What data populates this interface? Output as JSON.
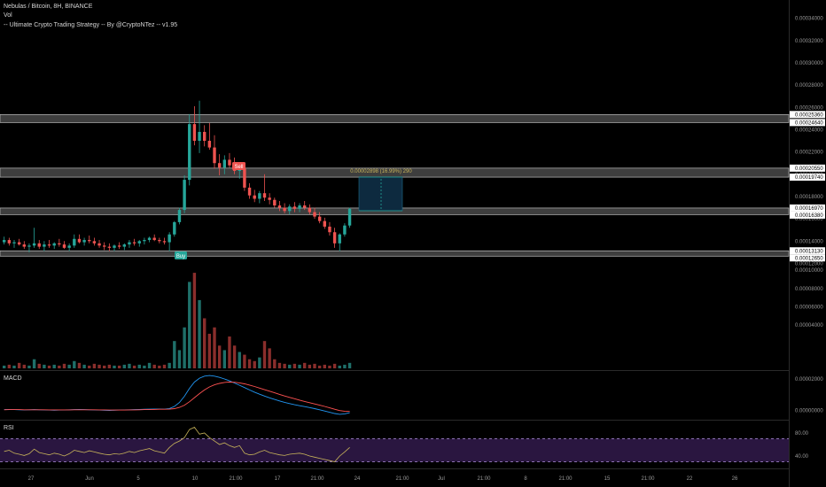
{
  "header": {
    "symbol_line": "Nebulas / Bitcoin, 8H, BINANCE",
    "volume_line": "Vol",
    "strategy_line": "-- Ultimate Crypto Trading Strategy -- By @CryptoNTez -- v1.95"
  },
  "panes": {
    "macd_label": "MACD",
    "rsi_label": "RSI"
  },
  "price_axis": {
    "ticks": [
      "0.00034000",
      "0.00032000",
      "0.00030000",
      "0.00028000",
      "0.00026000",
      "0.00024000",
      "0.00022000",
      "0.00020000",
      "0.00018000",
      "0.00016000",
      "0.00014000",
      "0.00012000"
    ],
    "highlight_labels": [
      "0.00025360",
      "0.00024640",
      "0.00020550",
      "0.00019740",
      "0.00016970",
      "0.00016380",
      "0.00013130",
      "0.00012650"
    ]
  },
  "volume_axis": {
    "ticks": [
      "0.00010000",
      "0.00008000",
      "0.00006000",
      "0.00004000"
    ]
  },
  "macd_axis": {
    "ticks": [
      "0.00002000",
      "0.00000000"
    ]
  },
  "rsi_axis": {
    "ticks": [
      "80.00",
      "40.00"
    ]
  },
  "time_axis": {
    "labels": [
      "27",
      "Jun",
      "5",
      "10",
      "21:00",
      "17",
      "21:00",
      "24",
      "21:00",
      "Jul",
      "21:00",
      "8",
      "21:00",
      "15",
      "21:00",
      "22",
      "26"
    ]
  },
  "signals": {
    "buy_label": "Buy",
    "sell_label": "Sell"
  },
  "measure": {
    "text": "0.00002898 (16.99%) 290"
  },
  "colors": {
    "up": "#26a69a",
    "down": "#ef5350",
    "macd": "#2196f3",
    "signal": "#ff5252",
    "rsi": "#c8b45a",
    "zone": "#8c8c8c"
  },
  "chart_data": [
    {
      "type": "candlestick",
      "title": "Nebulas / Bitcoin, 8H, BINANCE",
      "ylim": [
        0.000118,
        0.00035
      ],
      "zones": [
        [
          0.0002464,
          0.0002536
        ],
        [
          0.0001974,
          0.0002055
        ],
        [
          0.0001638,
          0.0001697
        ],
        [
          0.0001265,
          0.0001313
        ]
      ],
      "values": [
        [
          0.000139,
          0.000144,
          0.000137,
          0.000141
        ],
        [
          0.000141,
          0.000143,
          0.000136,
          0.000138
        ],
        [
          0.000138,
          0.000141,
          0.000134,
          0.000139
        ],
        [
          0.000139,
          0.000142,
          0.000136,
          0.000137
        ],
        [
          0.000137,
          0.00014,
          0.000133,
          0.000135
        ],
        [
          0.000135,
          0.000138,
          0.00013,
          0.000136
        ],
        [
          0.000136,
          0.000152,
          0.000134,
          0.000138
        ],
        [
          0.000138,
          0.000141,
          0.000133,
          0.000135
        ],
        [
          0.000135,
          0.00014,
          0.000131,
          0.000137
        ],
        [
          0.000137,
          0.000141,
          0.000134,
          0.000136
        ],
        [
          0.000136,
          0.000139,
          0.000133,
          0.000138
        ],
        [
          0.000138,
          0.000142,
          0.000135,
          0.000137
        ],
        [
          0.000137,
          0.00014,
          0.000133,
          0.000134
        ],
        [
          0.000134,
          0.000138,
          0.000131,
          0.000136
        ],
        [
          0.000136,
          0.000146,
          0.000134,
          0.000142
        ],
        [
          0.000142,
          0.000146,
          0.000138,
          0.000139
        ],
        [
          0.000139,
          0.000143,
          0.000136,
          0.000141
        ],
        [
          0.000141,
          0.000145,
          0.000138,
          0.00014
        ],
        [
          0.00014,
          0.000143,
          0.000136,
          0.000138
        ],
        [
          0.000138,
          0.000141,
          0.000134,
          0.000136
        ],
        [
          0.000136,
          0.000139,
          0.000132,
          0.000135
        ],
        [
          0.000135,
          0.000138,
          0.000131,
          0.000134
        ],
        [
          0.000134,
          0.000137,
          0.000131,
          0.000136
        ],
        [
          0.000136,
          0.000139,
          0.000133,
          0.000135
        ],
        [
          0.000135,
          0.000138,
          0.000132,
          0.000137
        ],
        [
          0.000137,
          0.000141,
          0.000134,
          0.000139
        ],
        [
          0.000139,
          0.000142,
          0.000136,
          0.000138
        ],
        [
          0.000138,
          0.000141,
          0.000135,
          0.00014
        ],
        [
          0.00014,
          0.000143,
          0.000137,
          0.000141
        ],
        [
          0.000141,
          0.000144,
          0.000139,
          0.000143
        ],
        [
          0.000143,
          0.000146,
          0.00014,
          0.000141
        ],
        [
          0.000141,
          0.000143,
          0.000138,
          0.00014
        ],
        [
          0.00014,
          0.000143,
          0.000137,
          0.000139
        ],
        [
          0.000139,
          0.000148,
          0.000131,
          0.000146
        ],
        [
          0.000146,
          0.000158,
          0.000144,
          0.000157
        ],
        [
          0.000157,
          0.00017,
          0.000155,
          0.000168
        ],
        [
          0.000168,
          0.000199,
          0.000165,
          0.000195
        ],
        [
          0.000195,
          0.000254,
          0.00019,
          0.000245
        ],
        [
          0.000245,
          0.000261,
          0.000226,
          0.00023
        ],
        [
          0.00023,
          0.000266,
          0.000219,
          0.000238
        ],
        [
          0.000238,
          0.000244,
          0.000225,
          0.00023
        ],
        [
          0.00023,
          0.000246,
          0.000222,
          0.000224
        ],
        [
          0.000224,
          0.000235,
          0.000205,
          0.00021
        ],
        [
          0.00021,
          0.000218,
          0.000199,
          0.000206
        ],
        [
          0.000206,
          0.000217,
          0.0002,
          0.000213
        ],
        [
          0.000213,
          0.000219,
          0.000206,
          0.000208
        ],
        [
          0.000208,
          0.000215,
          0.0002,
          0.000203
        ],
        [
          0.000203,
          0.00021,
          0.000196,
          0.000205
        ],
        [
          0.000205,
          0.000208,
          0.000185,
          0.000188
        ],
        [
          0.000188,
          0.000192,
          0.000178,
          0.000181
        ],
        [
          0.000181,
          0.000186,
          0.000175,
          0.000178
        ],
        [
          0.000178,
          0.000185,
          0.000174,
          0.000183
        ],
        [
          0.000183,
          0.0002,
          0.000176,
          0.000179
        ],
        [
          0.000179,
          0.000183,
          0.000173,
          0.000177
        ],
        [
          0.000177,
          0.000179,
          0.00017,
          0.000172
        ],
        [
          0.000172,
          0.000176,
          0.000167,
          0.00017
        ],
        [
          0.00017,
          0.000174,
          0.000165,
          0.000167
        ],
        [
          0.000167,
          0.000173,
          0.000164,
          0.000171
        ],
        [
          0.000171,
          0.000175,
          0.000166,
          0.000169
        ],
        [
          0.000169,
          0.000174,
          0.000166,
          0.000172
        ],
        [
          0.000172,
          0.000176,
          0.000168,
          0.00017
        ],
        [
          0.00017,
          0.000173,
          0.000164,
          0.000166
        ],
        [
          0.000166,
          0.00017,
          0.00016,
          0.000162
        ],
        [
          0.000162,
          0.000166,
          0.000156,
          0.000158
        ],
        [
          0.000158,
          0.000161,
          0.000151,
          0.000153
        ],
        [
          0.000153,
          0.000157,
          0.000145,
          0.000148
        ],
        [
          0.000148,
          0.000152,
          0.000134,
          0.000138
        ],
        [
          0.000138,
          0.000147,
          0.000131,
          0.000146
        ],
        [
          0.000146,
          0.000156,
          0.000144,
          0.000154
        ],
        [
          0.000154,
          0.00017,
          0.000152,
          0.000169
        ]
      ]
    },
    {
      "type": "bar",
      "title": "Vol",
      "ylim": [
        0,
        0.000108
      ],
      "values": [
        3e-06,
        4e-06,
        3e-06,
        6e-06,
        4e-06,
        3e-06,
        1e-05,
        5e-06,
        4e-06,
        3e-06,
        4e-06,
        3e-06,
        5e-06,
        4e-06,
        8e-06,
        6e-06,
        4e-06,
        3e-06,
        5e-06,
        4e-06,
        3e-06,
        4e-06,
        3e-06,
        3e-06,
        4e-06,
        5e-06,
        3e-06,
        4e-06,
        3e-06,
        6e-06,
        4e-06,
        3e-06,
        4e-06,
        6e-06,
        3e-05,
        2e-05,
        4.5e-05,
        9.5e-05,
        0.000105,
        7.5e-05,
        5.5e-05,
        3.8e-05,
        4.5e-05,
        2.5e-05,
        2e-05,
        3.5e-05,
        2.5e-05,
        1.8e-05,
        1.5e-05,
        1e-05,
        8e-06,
        1.2e-05,
        3e-05,
        2.2e-05,
        1e-05,
        6e-06,
        5e-06,
        4e-06,
        5e-06,
        4e-06,
        6e-06,
        4e-06,
        5e-06,
        3e-06,
        4e-06,
        3e-06,
        5e-06,
        3e-06,
        4e-06,
        6e-06
      ]
    },
    {
      "type": "line",
      "title": "MACD",
      "ylim": [
        -4.8e-06,
        2.45e-05
      ],
      "series": [
        {
          "values": [
            5e-07,
            6e-07,
            5e-07,
            4e-07,
            3e-07,
            4e-07,
            5e-07,
            4e-07,
            3e-07,
            2e-07,
            1e-07,
            2e-07,
            3e-07,
            4e-07,
            5e-07,
            6e-07,
            5e-07,
            4e-07,
            3e-07,
            2e-07,
            1e-07,
            0.0,
            1e-07,
            2e-07,
            3e-07,
            4e-07,
            5e-07,
            6e-07,
            7e-07,
            8e-07,
            9e-07,
            9e-07,
            8e-07,
            1.2e-06,
            2.5e-06,
            5e-06,
            9e-06,
            1.4e-05,
            1.8e-05,
            2.05e-05,
            2.18e-05,
            2.22e-05,
            2.18e-05,
            2.1e-05,
            2e-05,
            1.88e-05,
            1.74e-05,
            1.6e-05,
            1.45e-05,
            1.3e-05,
            1.16e-05,
            1.03e-05,
            9.1e-06,
            8e-06,
            7e-06,
            6e-06,
            5.1e-06,
            4.3e-06,
            3.6e-06,
            3e-06,
            2.4e-06,
            1.8e-06,
            1.1e-06,
            4e-07,
            -4e-07,
            -1.2e-06,
            -2e-06,
            -2.5e-06,
            -2.2e-06,
            -1.5e-06
          ]
        },
        {
          "values": [
            4e-07,
            5e-07,
            5e-07,
            5e-07,
            4e-07,
            4e-07,
            4e-07,
            4e-07,
            4e-07,
            3e-07,
            3e-07,
            3e-07,
            3e-07,
            3e-07,
            4e-07,
            4e-07,
            4e-07,
            4e-07,
            4e-07,
            3e-07,
            3e-07,
            2e-07,
            2e-07,
            2e-07,
            2e-07,
            3e-07,
            3e-07,
            4e-07,
            5e-07,
            5e-07,
            6e-07,
            7e-07,
            7e-07,
            8e-07,
            1.1e-06,
            1.9e-06,
            3.3e-06,
            5.5e-06,
            8.1e-06,
            1.07e-05,
            1.3e-05,
            1.49e-05,
            1.63e-05,
            1.72e-05,
            1.78e-05,
            1.8e-05,
            1.79e-05,
            1.75e-05,
            1.69e-05,
            1.61e-05,
            1.52e-05,
            1.42e-05,
            1.32e-05,
            1.22e-05,
            1.12e-05,
            1.02e-05,
            9.2e-06,
            8.3e-06,
            7.4e-06,
            6.5e-06,
            5.7e-06,
            4.9e-06,
            4.1e-06,
            3.3e-06,
            2.5e-06,
            1.6e-06,
            7e-07,
            -1e-07,
            -5e-07,
            -7e-07
          ]
        }
      ]
    },
    {
      "type": "line",
      "title": "RSI",
      "ylim": [
        20,
        100
      ],
      "bands": [
        70,
        30
      ],
      "series": [
        {
          "values": [
            48,
            50,
            45,
            43,
            41,
            44,
            52,
            46,
            44,
            42,
            45,
            43,
            40,
            44,
            50,
            48,
            46,
            49,
            47,
            45,
            43,
            42,
            44,
            43,
            45,
            48,
            46,
            49,
            51,
            53,
            49,
            47,
            45,
            55,
            62,
            66,
            72,
            86,
            90,
            78,
            80,
            72,
            66,
            60,
            63,
            58,
            55,
            58,
            45,
            42,
            43,
            47,
            50,
            46,
            44,
            42,
            41,
            43,
            44,
            45,
            43,
            40,
            38,
            36,
            34,
            32,
            30,
            40,
            47,
            55
          ]
        }
      ]
    }
  ]
}
